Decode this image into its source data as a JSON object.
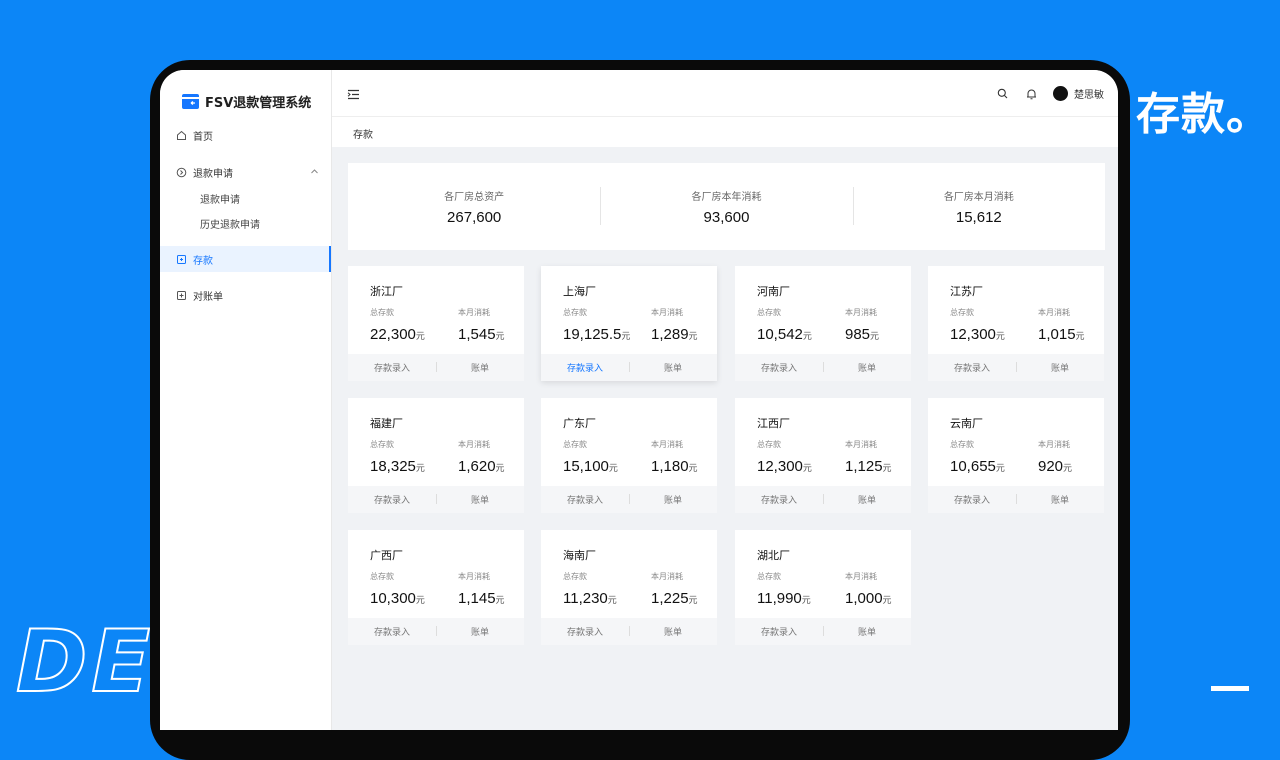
{
  "decor": {
    "headline": "存款。",
    "outline_text": "DE"
  },
  "app": {
    "title": "FSV退款管理系统"
  },
  "sidebar": {
    "home": "首页",
    "refund_group": "退款申请",
    "refund_sub": [
      "退款申请",
      "历史退款申请"
    ],
    "deposit": "存款",
    "statement": "对账单"
  },
  "header": {
    "user_name": "楚思敏"
  },
  "breadcrumb": "存款",
  "summary": [
    {
      "label": "各厂房总资产",
      "value": "267,600"
    },
    {
      "label": "各厂房本年消耗",
      "value": "93,600"
    },
    {
      "label": "各厂房本月消耗",
      "value": "15,612"
    }
  ],
  "card_labels": {
    "deposit": "总存款",
    "monthly": "本月消耗",
    "unit": "元",
    "btn_deposit": "存款录入",
    "btn_bill": "账单"
  },
  "factories": [
    {
      "name": "浙江厂",
      "deposit": "22,300",
      "monthly": "1,545"
    },
    {
      "name": "上海厂",
      "deposit": "19,125.5",
      "monthly": "1,289"
    },
    {
      "name": "河南厂",
      "deposit": "10,542",
      "monthly": "985"
    },
    {
      "name": "江苏厂",
      "deposit": "12,300",
      "monthly": "1,015"
    },
    {
      "name": "福建厂",
      "deposit": "18,325",
      "monthly": "1,620"
    },
    {
      "name": "广东厂",
      "deposit": "15,100",
      "monthly": "1,180"
    },
    {
      "name": "江西厂",
      "deposit": "12,300",
      "monthly": "1,125"
    },
    {
      "name": "云南厂",
      "deposit": "10,655",
      "monthly": "920"
    },
    {
      "name": "广西厂",
      "deposit": "10,300",
      "monthly": "1,145"
    },
    {
      "name": "海南厂",
      "deposit": "11,230",
      "monthly": "1,225"
    },
    {
      "name": "湖北厂",
      "deposit": "11,990",
      "monthly": "1,000"
    }
  ],
  "colors": {
    "background": "#0c86f7",
    "accent": "#1677ff"
  },
  "icons": [
    "menu-fold-icon",
    "search-icon",
    "bell-icon",
    "home-icon",
    "refund-icon",
    "deposit-icon",
    "statement-icon",
    "chevron-up-icon",
    "logo-icon"
  ]
}
